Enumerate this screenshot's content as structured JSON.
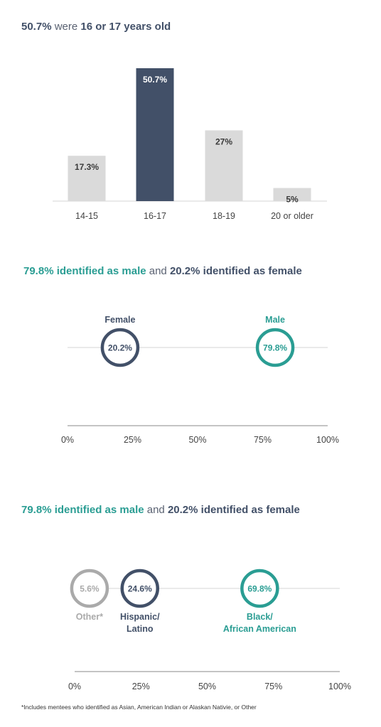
{
  "chart1": {
    "title": {
      "p1": "50.7%",
      "p2": " were ",
      "p3": "16 or 17 years old"
    }
  },
  "chart2": {
    "title": {
      "p1": "79.8% identified as male",
      "p2": " and ",
      "p3": "20.2% identified as female"
    }
  },
  "chart3": {
    "title": {
      "p1": "79.8% identified as male",
      "p2": " and ",
      "p3": "20.2% identified as female"
    }
  },
  "footnote": "*Includes mentees who identified as Asian, American Indian or Alaskan Nativie, or Other",
  "colors": {
    "dark": "#425068",
    "teal": "#2a9d93",
    "grey": "#aaaaaa",
    "lightbar": "#dadada",
    "axis": "#555555"
  },
  "chart_data": [
    {
      "type": "bar",
      "categories": [
        "14-15",
        "16-17",
        "18-19",
        "20 or older"
      ],
      "values": [
        17.3,
        50.7,
        27,
        5
      ],
      "value_labels": [
        "17.3%",
        "50.7%",
        "27%",
        "5%"
      ],
      "highlight_index": 1,
      "ylim": [
        0,
        50.7
      ]
    },
    {
      "type": "scatter",
      "x_ticks": [
        "0%",
        "25%",
        "50%",
        "75%",
        "100%"
      ],
      "xlim": [
        0,
        100
      ],
      "points": [
        {
          "name": "Female",
          "value": 20.2,
          "label": "20.2%",
          "color": "#425068"
        },
        {
          "name": "Male",
          "value": 79.8,
          "label": "79.8%",
          "color": "#2a9d93"
        }
      ]
    },
    {
      "type": "scatter",
      "x_ticks": [
        "0%",
        "25%",
        "50%",
        "75%",
        "100%"
      ],
      "xlim": [
        0,
        100
      ],
      "points": [
        {
          "name": "Other*",
          "value": 5.6,
          "label": "5.6%",
          "color": "#aaaaaa"
        },
        {
          "name": "Hispanic/\nLatino",
          "value": 24.6,
          "label": "24.6%",
          "color": "#425068"
        },
        {
          "name": "Black/\nAfrican American",
          "value": 69.8,
          "label": "69.8%",
          "color": "#2a9d93"
        }
      ]
    }
  ]
}
